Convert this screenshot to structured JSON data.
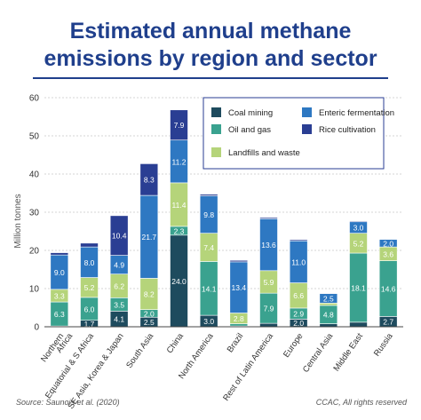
{
  "header": {
    "title_line1": "Estimated annual methane",
    "title_line2": "emissions by region and sector"
  },
  "footer": {
    "source": "Source: Saunois et al. (2020)",
    "credit": "CCAC, All rights reserved"
  },
  "chart_data": {
    "type": "bar",
    "stacked": true,
    "title": "Estimated annual methane emissions by region and sector",
    "ylabel": "Million tonnes",
    "ylim": [
      0,
      60
    ],
    "yticks": [
      0,
      10,
      20,
      30,
      40,
      50,
      60
    ],
    "grid": true,
    "legend_placement": "top-right",
    "categories": [
      "Northern Africa",
      "Equatorial & S Africa",
      "SE Asia, Korea & Japan",
      "South Asia",
      "China",
      "North America",
      "Brazil",
      "Rest of Latin America",
      "Europe",
      "Central Asia",
      "Middle East",
      "Russia"
    ],
    "series": [
      {
        "name": "Coal mining",
        "color": "#1e4b5e",
        "values": [
          0.2,
          1.7,
          4.1,
          2.5,
          24.0,
          3.0,
          0.2,
          0.9,
          2.0,
          0.8,
          1.2,
          2.7
        ],
        "labels": [
          "",
          "1.7",
          "4.1",
          "2.5",
          "24.0",
          "3.0",
          "",
          "",
          "2.0",
          "",
          "",
          "2.7"
        ]
      },
      {
        "name": "Oil and gas",
        "color": "#3aa28f",
        "values": [
          6.3,
          6.0,
          3.5,
          2.0,
          2.3,
          14.1,
          0.6,
          7.9,
          2.9,
          4.8,
          18.1,
          14.6
        ],
        "labels": [
          "6.3",
          "6.0",
          "3.5",
          "2.0",
          "2.3",
          "14.1",
          "",
          "7.9",
          "2.9",
          "4.8",
          "18.1",
          "14.6"
        ]
      },
      {
        "name": "Landfills and waste",
        "color": "#b5d47a",
        "values": [
          3.3,
          5.2,
          6.2,
          8.2,
          11.4,
          7.4,
          2.8,
          5.9,
          6.6,
          0.6,
          5.2,
          3.6
        ],
        "labels": [
          "3.3",
          "5.2",
          "6.2",
          "8.2",
          "11.4",
          "7.4",
          "2.8",
          "5.9",
          "6.6",
          "",
          "5.2",
          "3.6"
        ]
      },
      {
        "name": "Enteric fermentation",
        "color": "#2e78c2",
        "values": [
          9.0,
          8.0,
          4.9,
          21.7,
          11.2,
          9.8,
          13.4,
          13.6,
          11.0,
          2.5,
          3.0,
          2.0
        ],
        "labels": [
          "9.0",
          "8.0",
          "4.9",
          "21.7",
          "11.2",
          "9.8",
          "13.4",
          "13.6",
          "11.0",
          "2.5",
          "3.0",
          "2.0"
        ]
      },
      {
        "name": "Rice cultivation",
        "color": "#2a3e93",
        "values": [
          0.6,
          1.0,
          10.4,
          8.3,
          7.9,
          0.4,
          0.4,
          0.3,
          0.3,
          0.1,
          0.2,
          0.1
        ],
        "labels": [
          "",
          "",
          "10.4",
          "8.3",
          "7.9",
          "",
          "",
          "",
          "",
          "",
          "",
          ""
        ]
      }
    ]
  }
}
